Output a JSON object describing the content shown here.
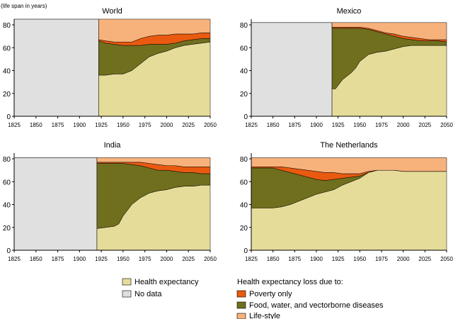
{
  "chart_data": [
    {
      "type": "area",
      "title": "World",
      "ylabel": "(life span in years)",
      "xlim": [
        1825,
        2050
      ],
      "ylim": [
        0,
        85
      ],
      "yticks": [
        0,
        20,
        40,
        60,
        80
      ],
      "xticks": [
        1825,
        1850,
        1875,
        1900,
        1925,
        1950,
        1975,
        2000,
        2025,
        2050
      ],
      "nodata_range": [
        1825,
        1922
      ],
      "nodata_top": 85,
      "x": [
        1922,
        1930,
        1940,
        1950,
        1960,
        1970,
        1980,
        1990,
        2000,
        2010,
        2020,
        2030,
        2040,
        2050
      ],
      "series": [
        {
          "name": "Health expectancy",
          "values": [
            36,
            36,
            37,
            37,
            40,
            46,
            52,
            55,
            57,
            60,
            62,
            63,
            64,
            65
          ]
        },
        {
          "name": "Food, water, and vectorborne diseases",
          "values": [
            66,
            64,
            63,
            62,
            62,
            62,
            63,
            63,
            63,
            64,
            66,
            67,
            68,
            68
          ]
        },
        {
          "name": "Poverty only",
          "values": [
            67,
            66,
            65,
            65,
            65,
            68,
            70,
            71,
            71,
            72,
            72,
            72,
            73,
            73
          ]
        },
        {
          "name": "Life-style",
          "values": [
            85,
            85,
            85,
            85,
            85,
            85,
            85,
            85,
            85,
            85,
            85,
            85,
            85,
            85
          ]
        }
      ]
    },
    {
      "type": "area",
      "title": "Mexico",
      "xlim": [
        1825,
        2050
      ],
      "ylim": [
        0,
        85
      ],
      "yticks": [
        0,
        20,
        40,
        60,
        80
      ],
      "xticks": [
        1825,
        1850,
        1875,
        1900,
        1925,
        1950,
        1975,
        2000,
        2025,
        2050
      ],
      "nodata_range": [
        1825,
        1918
      ],
      "nodata_top": 82,
      "x": [
        1918,
        1922,
        1930,
        1940,
        1945,
        1950,
        1960,
        1970,
        1980,
        1990,
        2000,
        2010,
        2020,
        2030,
        2040,
        2050
      ],
      "series": [
        {
          "name": "Health expectancy",
          "values": [
            24,
            24,
            32,
            38,
            42,
            48,
            54,
            56,
            57,
            59,
            61,
            62,
            62,
            62,
            62,
            62
          ]
        },
        {
          "name": "Food, water, and vectorborne diseases",
          "values": [
            77,
            77,
            77,
            77,
            77,
            77,
            76,
            74,
            72,
            70,
            68,
            67,
            66,
            66,
            66,
            65
          ]
        },
        {
          "name": "Poverty only",
          "values": [
            78,
            78,
            78,
            78,
            78,
            78,
            77,
            75,
            73,
            72,
            70,
            69,
            68,
            67,
            67,
            67
          ]
        },
        {
          "name": "Life-style",
          "values": [
            82,
            82,
            82,
            82,
            82,
            82,
            82,
            82,
            82,
            82,
            82,
            82,
            82,
            82,
            82,
            82
          ]
        }
      ]
    },
    {
      "type": "area",
      "title": "India",
      "xlim": [
        1825,
        2050
      ],
      "ylim": [
        0,
        85
      ],
      "yticks": [
        0,
        20,
        40,
        60,
        80
      ],
      "xticks": [
        1825,
        1850,
        1875,
        1900,
        1925,
        1950,
        1975,
        2000,
        2025,
        2050
      ],
      "nodata_range": [
        1825,
        1920
      ],
      "nodata_top": 81,
      "x": [
        1920,
        1930,
        1940,
        1945,
        1950,
        1960,
        1970,
        1980,
        1990,
        2000,
        2010,
        2020,
        2030,
        2040,
        2050
      ],
      "series": [
        {
          "name": "Health expectancy",
          "values": [
            19,
            20,
            21,
            23,
            30,
            40,
            46,
            50,
            52,
            53,
            55,
            56,
            56,
            57,
            57
          ]
        },
        {
          "name": "Food, water, and vectorborne diseases",
          "values": [
            76,
            76,
            76,
            76,
            76,
            75,
            74,
            72,
            70,
            70,
            69,
            68,
            68,
            67,
            67
          ]
        },
        {
          "name": "Poverty only",
          "values": [
            77,
            77,
            77,
            77,
            77,
            77,
            77,
            76,
            75,
            74,
            74,
            73,
            73,
            73,
            73
          ]
        },
        {
          "name": "Life-style",
          "values": [
            81,
            81,
            81,
            81,
            81,
            81,
            81,
            81,
            81,
            81,
            81,
            81,
            81,
            81,
            81
          ]
        }
      ]
    },
    {
      "type": "area",
      "title": "The Netherlands",
      "xlim": [
        1825,
        2050
      ],
      "ylim": [
        0,
        85
      ],
      "yticks": [
        0,
        20,
        40,
        60,
        80
      ],
      "xticks": [
        1825,
        1850,
        1875,
        1900,
        1925,
        1950,
        1975,
        2000,
        2025,
        2050
      ],
      "x": [
        1825,
        1840,
        1850,
        1860,
        1870,
        1880,
        1890,
        1900,
        1910,
        1920,
        1930,
        1940,
        1950,
        1960,
        1970,
        1975,
        1990,
        2000,
        2010,
        2020,
        2030,
        2040,
        2050
      ],
      "series": [
        {
          "name": "Health expectancy",
          "values": [
            37,
            37,
            37,
            38,
            40,
            43,
            46,
            49,
            51,
            53,
            57,
            60,
            63,
            68,
            70,
            70,
            70,
            69,
            69,
            69,
            69,
            69,
            69
          ]
        },
        {
          "name": "Food, water, and vectorborne diseases",
          "values": [
            72,
            72,
            72,
            70,
            68,
            66,
            64,
            62,
            61,
            62,
            63,
            64,
            65,
            68,
            70,
            70,
            70,
            69,
            69,
            69,
            69,
            69,
            69
          ]
        },
        {
          "name": "Poverty only",
          "values": [
            73,
            73,
            73,
            73,
            72,
            71,
            70,
            69,
            68,
            68,
            67,
            67,
            67,
            69,
            70,
            70,
            70,
            69,
            69,
            69,
            69,
            69,
            69
          ]
        },
        {
          "name": "Life-style",
          "values": [
            81,
            81,
            81,
            81,
            81,
            81,
            81,
            81,
            81,
            81,
            81,
            81,
            81,
            81,
            81,
            81,
            81,
            81,
            81,
            81,
            81,
            81,
            81
          ]
        }
      ]
    }
  ],
  "colors": {
    "Health expectancy": "#e6dc9a",
    "No data": "#e0e0e0",
    "Poverty only": "#e95a10",
    "Food, water, and vectorborne diseases": "#6f6f1e",
    "Life-style": "#f7b27c"
  },
  "legend": {
    "left": [
      {
        "key": "Health expectancy",
        "label": "Health expectancy"
      },
      {
        "key": "No data",
        "label": "No data"
      }
    ],
    "right_title": "Health expectancy loss due to:",
    "right": [
      {
        "key": "Poverty only",
        "label": "Poverty only"
      },
      {
        "key": "Food, water, and vectorborne diseases",
        "label": "Food, water, and vectorborne diseases"
      },
      {
        "key": "Life-style",
        "label": "Life-style"
      }
    ]
  }
}
